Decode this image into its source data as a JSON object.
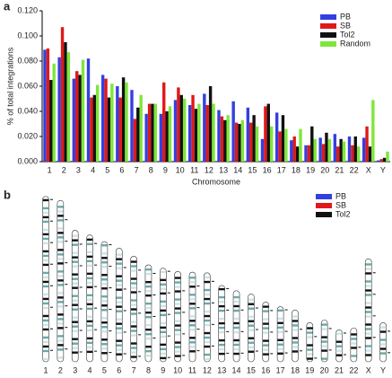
{
  "chart_data": [
    {
      "type": "bar",
      "panel_label": "a",
      "y_label": "% of total integrations",
      "x_label": "Chromosome",
      "categories": [
        "1",
        "2",
        "3",
        "4",
        "5",
        "6",
        "7",
        "8",
        "9",
        "10",
        "11",
        "12",
        "13",
        "14",
        "15",
        "16",
        "17",
        "18",
        "19",
        "20",
        "21",
        "22",
        "X",
        "Y"
      ],
      "series": [
        {
          "name": "PB",
          "color": "#3340e0",
          "values": [
            0.089,
            0.083,
            0.066,
            0.082,
            0.069,
            0.06,
            0.057,
            0.038,
            0.038,
            0.049,
            0.045,
            0.054,
            0.041,
            0.048,
            0.043,
            0.018,
            0.039,
            0.017,
            0.013,
            0.019,
            0.022,
            0.02,
            0.019,
            0.001
          ]
        },
        {
          "name": "SB",
          "color": "#e01818",
          "values": [
            0.09,
            0.107,
            0.072,
            0.051,
            0.066,
            0.051,
            0.034,
            0.046,
            0.063,
            0.059,
            0.053,
            0.045,
            0.036,
            0.031,
            0.031,
            0.044,
            0.024,
            0.02,
            0.013,
            0.014,
            0.012,
            0.013,
            0.028,
            0.002
          ]
        },
        {
          "name": "Tol2",
          "color": "#111111",
          "values": [
            0.065,
            0.095,
            0.069,
            0.053,
            0.051,
            0.067,
            0.043,
            0.046,
            0.04,
            0.053,
            0.042,
            0.06,
            0.033,
            0.03,
            0.037,
            0.046,
            0.037,
            0.012,
            0.028,
            0.023,
            0.018,
            0.02,
            0.012,
            0.003
          ]
        },
        {
          "name": "Random",
          "color": "#7ee63a",
          "values": [
            0.078,
            0.087,
            0.081,
            0.061,
            0.062,
            0.063,
            0.053,
            0.046,
            0.044,
            0.05,
            0.046,
            0.046,
            0.037,
            0.033,
            0.028,
            0.028,
            0.026,
            0.026,
            0.018,
            0.018,
            0.016,
            0.012,
            0.049,
            0.008
          ]
        }
      ],
      "ylim": [
        0,
        0.12
      ],
      "yticks": [
        {
          "value": 0,
          "label": "0.000"
        },
        {
          "value": 0.02,
          "label": "0.020"
        },
        {
          "value": 0.04,
          "label": "0.040"
        },
        {
          "value": 0.06,
          "label": "0.060"
        },
        {
          "value": 0.08,
          "label": "0.080"
        },
        {
          "value": 0.1,
          "label": "0.100"
        },
        {
          "value": 0.12,
          "label": "0.120"
        }
      ],
      "legend": "upper right"
    },
    {
      "type": "ideogram",
      "panel_label": "b",
      "categories": [
        "1",
        "2",
        "3",
        "4",
        "5",
        "6",
        "7",
        "8",
        "9",
        "10",
        "11",
        "12",
        "13",
        "14",
        "15",
        "16",
        "17",
        "18",
        "19",
        "20",
        "21",
        "22",
        "X",
        "Y"
      ],
      "series": [
        {
          "name": "PB",
          "color": "#3340e0"
        },
        {
          "name": "SB",
          "color": "#e01818"
        },
        {
          "name": "Tol2",
          "color": "#111111"
        }
      ]
    }
  ]
}
